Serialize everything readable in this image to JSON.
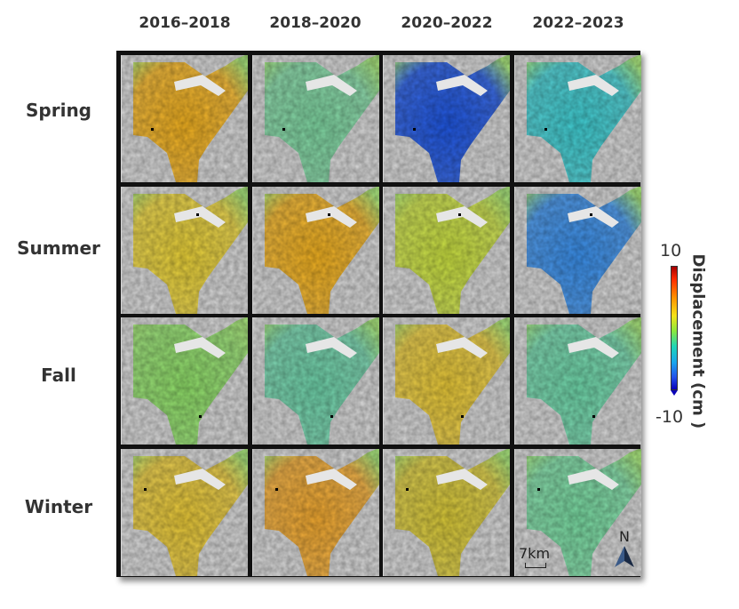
{
  "columns": [
    "2016–2018",
    "2018–2020",
    "2020–2022",
    "2022–2023"
  ],
  "rows": [
    "Spring",
    "Summer",
    "Fall",
    "Winter"
  ],
  "legend": {
    "title": "Displacement (cm )",
    "max": "10",
    "min": "-10"
  },
  "scale": {
    "label": "7km"
  },
  "north": {
    "label": "N"
  },
  "colors": {
    "no_data": "#d6d6d6",
    "border": "#111111",
    "ramp": [
      "#a50000",
      "#ff2a00",
      "#ff9000",
      "#f5e21a",
      "#8fe83a",
      "#1fd6b8",
      "#19a6ee",
      "#2352ec",
      "#0a00b8"
    ]
  },
  "panel_tones": [
    [
      "#f0b020",
      "#7ed4a0",
      "#1f56e0",
      "#3fcbd0"
    ],
    [
      "#e8d038",
      "#f0b020",
      "#c8de40",
      "#3a8ee8"
    ],
    [
      "#8edc68",
      "#6ed0a8",
      "#e8c838",
      "#6ed4a8"
    ],
    [
      "#e8c838",
      "#f0a830",
      "#d8c838",
      "#78d8a0"
    ]
  ]
}
